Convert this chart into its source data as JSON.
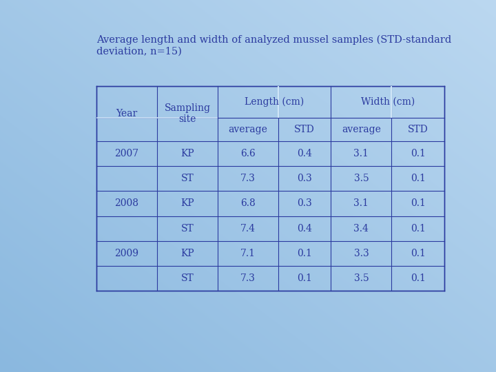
{
  "title_line1": "Average length and width of analyzed mussel samples (STD-standard",
  "title_line2": "deviation, n=15)",
  "title_color": "#2B3A9F",
  "bg_color_light": "#d0e8f8",
  "bg_color_dark": "#8ab8df",
  "table_text_color": "#2B3A9F",
  "line_color": "#2B3A9F",
  "font_size_title": 10.5,
  "font_size_table": 10,
  "rows": [
    [
      "2007",
      "KP",
      "6.6",
      "0.4",
      "3.1",
      "0.1"
    ],
    [
      "",
      "ST",
      "7.3",
      "0.3",
      "3.5",
      "0.1"
    ],
    [
      "2008",
      "KP",
      "6.8",
      "0.3",
      "3.1",
      "0.1"
    ],
    [
      "",
      "ST",
      "7.4",
      "0.4",
      "3.4",
      "0.1"
    ],
    [
      "2009",
      "KP",
      "7.1",
      "0.1",
      "3.3",
      "0.1"
    ],
    [
      "",
      "ST",
      "7.3",
      "0.1",
      "3.5",
      "0.1"
    ]
  ]
}
